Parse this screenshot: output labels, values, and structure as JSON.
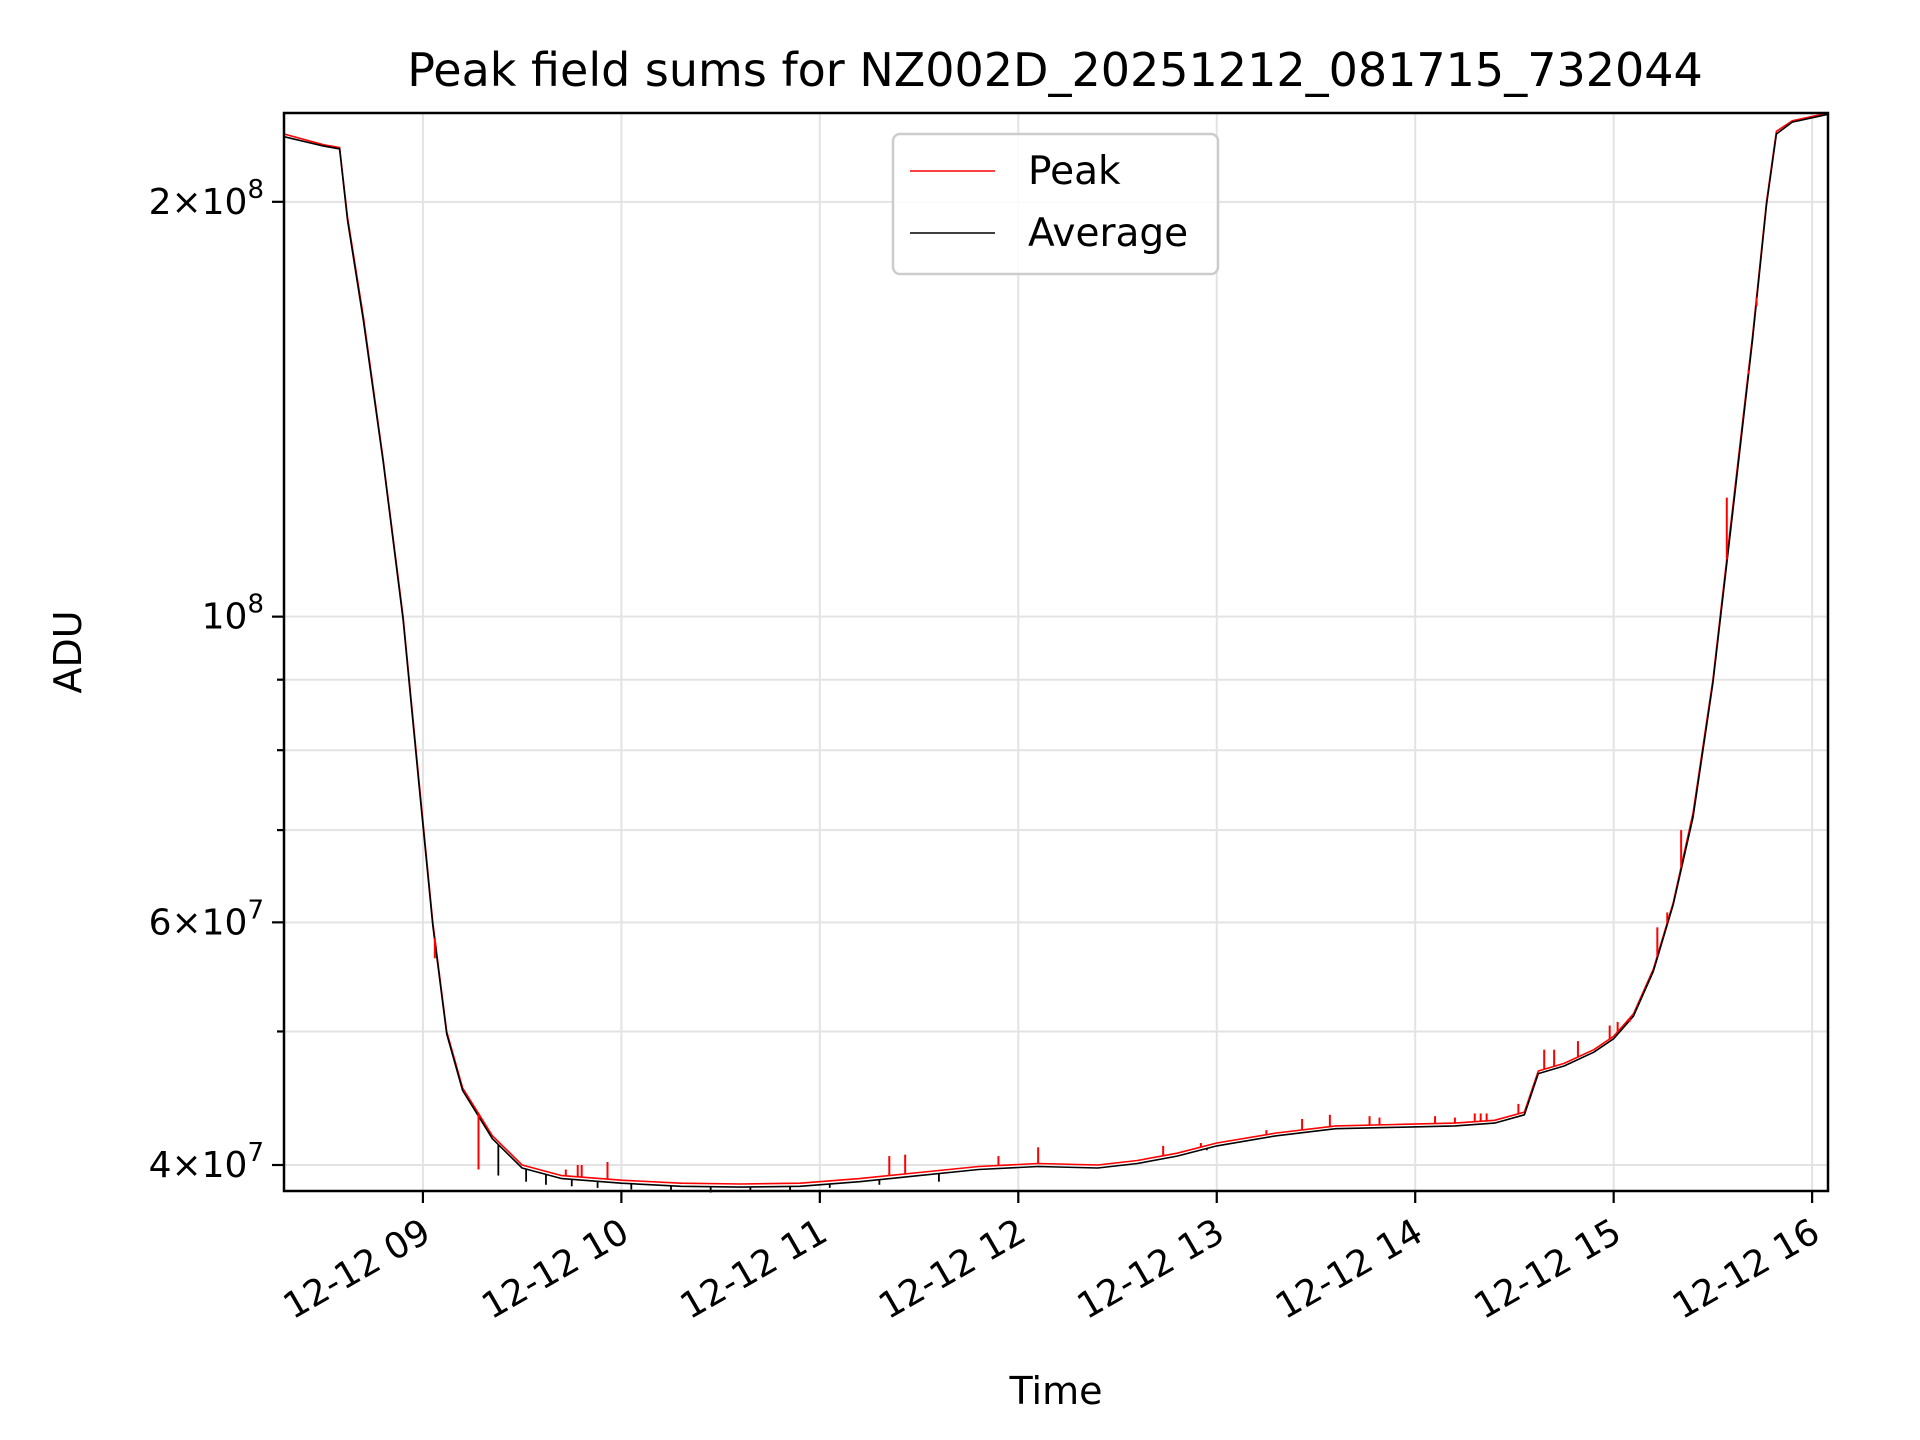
{
  "chart_data": {
    "type": "line",
    "title": "Peak field sums for NZ002D_20251212_081715_732044",
    "xlabel": "Time",
    "ylabel": "ADU",
    "yscale": "log",
    "ylim": [
      38300000,
      232000000
    ],
    "xlim": [
      8.3,
      16.08
    ],
    "grid": true,
    "legend_position": "upper center",
    "x_ticks": [
      {
        "value": 9,
        "label": "12-12 09"
      },
      {
        "value": 10,
        "label": "12-12 10"
      },
      {
        "value": 11,
        "label": "12-12 11"
      },
      {
        "value": 12,
        "label": "12-12 12"
      },
      {
        "value": 13,
        "label": "12-12 13"
      },
      {
        "value": 14,
        "label": "12-12 14"
      },
      {
        "value": 15,
        "label": "12-12 15"
      },
      {
        "value": 16,
        "label": "12-12 16"
      }
    ],
    "y_major_ticks": [
      {
        "value": 40000000,
        "mantissa": "4",
        "exponent": "7"
      },
      {
        "value": 60000000,
        "mantissa": "6",
        "exponent": "7"
      },
      {
        "value": 100000000,
        "mantissa": "",
        "exponent": "8"
      },
      {
        "value": 200000000,
        "mantissa": "2",
        "exponent": "8"
      }
    ],
    "y_minor_ticks": [
      50000000,
      70000000,
      80000000,
      90000000
    ],
    "series": [
      {
        "name": "Peak",
        "color": "#ff0000",
        "points": [
          [
            8.3,
            224000000
          ],
          [
            8.5,
            220000000
          ],
          [
            8.58,
            219000000
          ],
          [
            8.62,
            195000000
          ],
          [
            8.7,
            165000000
          ],
          [
            8.8,
            130000000
          ],
          [
            8.9,
            100000000
          ],
          [
            8.98,
            76000000
          ],
          [
            9.05,
            60000000
          ],
          [
            9.12,
            50000000
          ],
          [
            9.2,
            45500000
          ],
          [
            9.35,
            42000000
          ],
          [
            9.5,
            40000000
          ],
          [
            9.7,
            39300000
          ],
          [
            10.0,
            39000000
          ],
          [
            10.3,
            38800000
          ],
          [
            10.6,
            38750000
          ],
          [
            10.9,
            38800000
          ],
          [
            11.2,
            39100000
          ],
          [
            11.5,
            39500000
          ],
          [
            11.8,
            39900000
          ],
          [
            12.1,
            40100000
          ],
          [
            12.4,
            40000000
          ],
          [
            12.6,
            40300000
          ],
          [
            12.8,
            40800000
          ],
          [
            13.0,
            41500000
          ],
          [
            13.3,
            42200000
          ],
          [
            13.6,
            42700000
          ],
          [
            13.9,
            42800000
          ],
          [
            14.2,
            42900000
          ],
          [
            14.4,
            43100000
          ],
          [
            14.55,
            43700000
          ],
          [
            14.62,
            46800000
          ],
          [
            14.75,
            47400000
          ],
          [
            14.9,
            48500000
          ],
          [
            15.0,
            49600000
          ],
          [
            15.1,
            51500000
          ],
          [
            15.2,
            55500000
          ],
          [
            15.3,
            62000000
          ],
          [
            15.4,
            72000000
          ],
          [
            15.5,
            90000000
          ],
          [
            15.6,
            120000000
          ],
          [
            15.7,
            160000000
          ],
          [
            15.77,
            200000000
          ],
          [
            15.82,
            225000000
          ],
          [
            15.9,
            229000000
          ],
          [
            16.08,
            232000000
          ]
        ],
        "spikes": [
          [
            9.06,
            56500000
          ],
          [
            9.28,
            39700000
          ],
          [
            9.55,
            39800000
          ],
          [
            9.72,
            39700000
          ],
          [
            9.78,
            40000000
          ],
          [
            9.8,
            40000000
          ],
          [
            9.93,
            40200000
          ],
          [
            11.35,
            40600000
          ],
          [
            11.43,
            40700000
          ],
          [
            11.9,
            40600000
          ],
          [
            12.1,
            41200000
          ],
          [
            12.73,
            41300000
          ],
          [
            12.92,
            41500000
          ],
          [
            13.25,
            42400000
          ],
          [
            13.43,
            43200000
          ],
          [
            13.57,
            43500000
          ],
          [
            13.77,
            43400000
          ],
          [
            13.82,
            43300000
          ],
          [
            14.1,
            43400000
          ],
          [
            14.2,
            43300000
          ],
          [
            14.3,
            43600000
          ],
          [
            14.33,
            43600000
          ],
          [
            14.36,
            43600000
          ],
          [
            14.52,
            44300000
          ],
          [
            14.65,
            48500000
          ],
          [
            14.7,
            48500000
          ],
          [
            14.82,
            49200000
          ],
          [
            14.98,
            50500000
          ],
          [
            15.02,
            50800000
          ],
          [
            15.08,
            50800000
          ],
          [
            15.22,
            59500000
          ],
          [
            15.27,
            61000000
          ],
          [
            15.34,
            70000000
          ],
          [
            15.57,
            122000000
          ],
          [
            15.68,
            150000000
          ],
          [
            15.72,
            168000000
          ]
        ]
      },
      {
        "name": "Average",
        "color": "#000000",
        "points": [
          [
            8.3,
            223000000
          ],
          [
            8.5,
            219500000
          ],
          [
            8.58,
            218500000
          ],
          [
            8.62,
            194000000
          ],
          [
            8.7,
            164000000
          ],
          [
            8.8,
            129500000
          ],
          [
            8.9,
            99500000
          ],
          [
            8.98,
            75500000
          ],
          [
            9.05,
            59700000
          ],
          [
            9.12,
            49800000
          ],
          [
            9.2,
            45300000
          ],
          [
            9.35,
            41800000
          ],
          [
            9.5,
            39800000
          ],
          [
            9.7,
            39100000
          ],
          [
            10.0,
            38800000
          ],
          [
            10.3,
            38600000
          ],
          [
            10.6,
            38550000
          ],
          [
            10.9,
            38600000
          ],
          [
            11.2,
            38900000
          ],
          [
            11.5,
            39300000
          ],
          [
            11.8,
            39700000
          ],
          [
            12.1,
            39900000
          ],
          [
            12.4,
            39800000
          ],
          [
            12.6,
            40100000
          ],
          [
            12.8,
            40600000
          ],
          [
            13.0,
            41300000
          ],
          [
            13.3,
            42000000
          ],
          [
            13.6,
            42500000
          ],
          [
            13.9,
            42600000
          ],
          [
            14.2,
            42700000
          ],
          [
            14.4,
            42900000
          ],
          [
            14.55,
            43500000
          ],
          [
            14.62,
            46600000
          ],
          [
            14.75,
            47200000
          ],
          [
            14.9,
            48300000
          ],
          [
            15.0,
            49400000
          ],
          [
            15.1,
            51300000
          ],
          [
            15.2,
            55300000
          ],
          [
            15.3,
            61800000
          ],
          [
            15.4,
            71500000
          ],
          [
            15.5,
            89500000
          ],
          [
            15.6,
            119000000
          ],
          [
            15.7,
            159000000
          ],
          [
            15.77,
            199000000
          ],
          [
            15.82,
            224000000
          ],
          [
            15.9,
            228500000
          ],
          [
            16.08,
            231500000
          ]
        ],
        "dips": [
          [
            9.38,
            39300000
          ],
          [
            9.52,
            38900000
          ],
          [
            9.62,
            38700000
          ],
          [
            9.75,
            38600000
          ],
          [
            9.88,
            38500000
          ],
          [
            10.05,
            38400000
          ],
          [
            10.25,
            38300000
          ],
          [
            10.45,
            38200000
          ],
          [
            10.65,
            38250000
          ],
          [
            10.85,
            38300000
          ],
          [
            11.05,
            38500000
          ],
          [
            11.3,
            38700000
          ],
          [
            11.6,
            38900000
          ],
          [
            12.95,
            41000000
          ],
          [
            13.15,
            41600000
          ]
        ]
      }
    ]
  }
}
